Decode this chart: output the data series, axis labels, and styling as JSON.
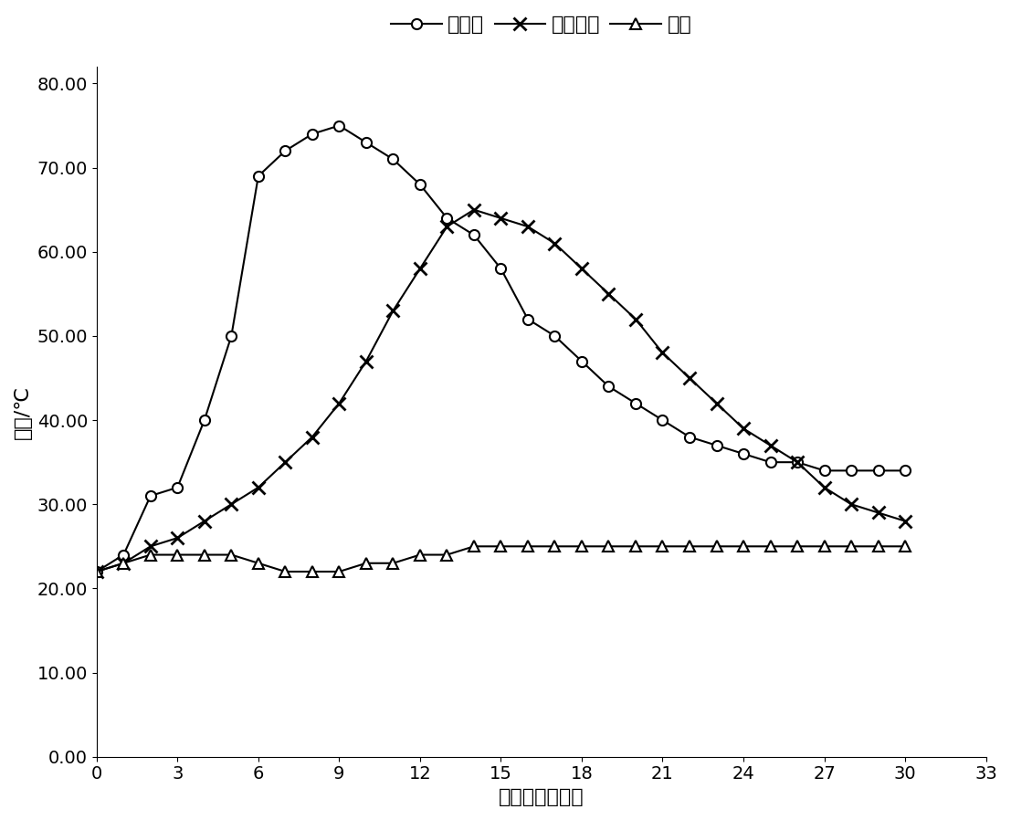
{
  "title": "",
  "xlabel": "腐解时间（天）",
  "ylabel": "温度/℃",
  "xlim": [
    0,
    33
  ],
  "ylim": [
    0,
    80
  ],
  "yticks": [
    0.0,
    10.0,
    20.0,
    30.0,
    40.0,
    50.0,
    60.0,
    70.0,
    80.0
  ],
  "xticks": [
    0,
    3,
    6,
    9,
    12,
    15,
    18,
    21,
    24,
    27,
    30,
    33
  ],
  "series1_label": "启动剂",
  "series1_x": [
    0,
    1,
    2,
    3,
    4,
    5,
    6,
    7,
    8,
    9,
    10,
    11,
    12,
    13,
    14,
    15,
    16,
    17,
    18,
    19,
    20,
    21,
    22,
    23,
    24,
    25,
    26,
    27,
    28,
    29,
    30
  ],
  "series1_y": [
    22,
    24,
    31,
    32,
    40,
    50,
    69,
    72,
    74,
    75,
    73,
    71,
    68,
    64,
    62,
    58,
    52,
    50,
    47,
    44,
    42,
    40,
    38,
    37,
    36,
    35,
    35,
    34,
    34,
    34,
    34
  ],
  "series2_label": "无启动剂",
  "series2_x": [
    0,
    1,
    2,
    3,
    4,
    5,
    6,
    7,
    8,
    9,
    10,
    11,
    12,
    13,
    14,
    15,
    16,
    17,
    18,
    19,
    20,
    21,
    22,
    23,
    24,
    25,
    26,
    27,
    28,
    29,
    30
  ],
  "series2_y": [
    22,
    23,
    25,
    26,
    28,
    30,
    32,
    35,
    38,
    42,
    47,
    53,
    58,
    63,
    65,
    64,
    63,
    61,
    58,
    55,
    52,
    48,
    45,
    42,
    39,
    37,
    35,
    32,
    30,
    29,
    28
  ],
  "series3_label": "气温",
  "series3_x": [
    0,
    1,
    2,
    3,
    4,
    5,
    6,
    7,
    8,
    9,
    10,
    11,
    12,
    13,
    14,
    15,
    16,
    17,
    18,
    19,
    20,
    21,
    22,
    23,
    24,
    25,
    26,
    27,
    28,
    29,
    30
  ],
  "series3_y": [
    22,
    23,
    24,
    24,
    24,
    24,
    23,
    22,
    22,
    22,
    23,
    23,
    24,
    24,
    25,
    25,
    25,
    25,
    25,
    25,
    25,
    25,
    25,
    25,
    25,
    25,
    25,
    25,
    25,
    25,
    25
  ],
  "line_color": "black",
  "background_color": "white",
  "legend_fontsize": 16,
  "axis_fontsize": 16,
  "tick_fontsize": 14
}
